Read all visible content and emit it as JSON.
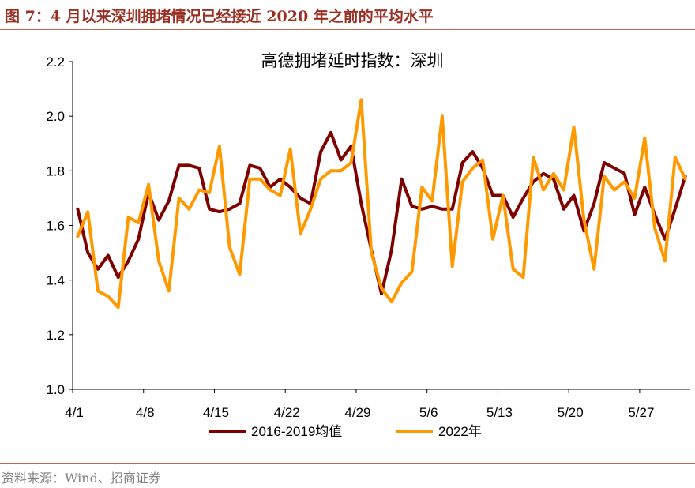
{
  "header": {
    "title": "图 7：4 月以来深圳拥堵情况已经接近 2020 年之前的平均水平"
  },
  "footer": {
    "source": "资料来源：Wind、招商证券"
  },
  "chart_data": {
    "type": "line",
    "title": "高德拥堵延时指数：深圳",
    "xlabel": "",
    "ylabel": "",
    "ylim": [
      1.0,
      2.2
    ],
    "yticks": [
      "1.0",
      "1.2",
      "1.4",
      "1.6",
      "1.8",
      "2.0",
      "2.2"
    ],
    "xticks": [
      {
        "index": 0,
        "label": "4/1"
      },
      {
        "index": 7,
        "label": "4/8"
      },
      {
        "index": 14,
        "label": "4/15"
      },
      {
        "index": 21,
        "label": "4/22"
      },
      {
        "index": 28,
        "label": "4/29"
      },
      {
        "index": 35,
        "label": "5/6"
      },
      {
        "index": 42,
        "label": "5/13"
      },
      {
        "index": 49,
        "label": "5/20"
      },
      {
        "index": 56,
        "label": "5/27"
      }
    ],
    "x_count": 61,
    "grid": false,
    "legend_position": "bottom",
    "series": [
      {
        "name": "2016-2019均值",
        "color": "#7f0000",
        "values": [
          1.66,
          1.5,
          1.44,
          1.49,
          1.41,
          1.47,
          1.55,
          1.72,
          1.62,
          1.69,
          1.82,
          1.82,
          1.81,
          1.66,
          1.65,
          1.66,
          1.68,
          1.82,
          1.81,
          1.74,
          1.77,
          1.74,
          1.7,
          1.68,
          1.87,
          1.94,
          1.84,
          1.89,
          1.68,
          1.51,
          1.35,
          1.51,
          1.77,
          1.67,
          1.66,
          1.67,
          1.66,
          1.66,
          1.83,
          1.87,
          1.81,
          1.71,
          1.71,
          1.63,
          1.7,
          1.76,
          1.79,
          1.77,
          1.66,
          1.71,
          1.58,
          1.68,
          1.83,
          1.81,
          1.79,
          1.64,
          1.74,
          1.64,
          1.55,
          1.66,
          1.78
        ]
      },
      {
        "name": "2022年",
        "color": "#ff9900",
        "values": [
          1.56,
          1.65,
          1.36,
          1.34,
          1.3,
          1.63,
          1.61,
          1.75,
          1.47,
          1.36,
          1.7,
          1.66,
          1.73,
          1.72,
          1.89,
          1.52,
          1.42,
          1.77,
          1.77,
          1.73,
          1.71,
          1.88,
          1.57,
          1.66,
          1.77,
          1.8,
          1.8,
          1.83,
          2.06,
          1.5,
          1.37,
          1.32,
          1.39,
          1.43,
          1.74,
          1.69,
          2.0,
          1.45,
          1.76,
          1.81,
          1.84,
          1.55,
          1.71,
          1.44,
          1.41,
          1.85,
          1.73,
          1.79,
          1.73,
          1.96,
          1.62,
          1.44,
          1.78,
          1.73,
          1.76,
          1.7,
          1.92,
          1.59,
          1.47,
          1.85,
          1.77
        ]
      }
    ]
  }
}
